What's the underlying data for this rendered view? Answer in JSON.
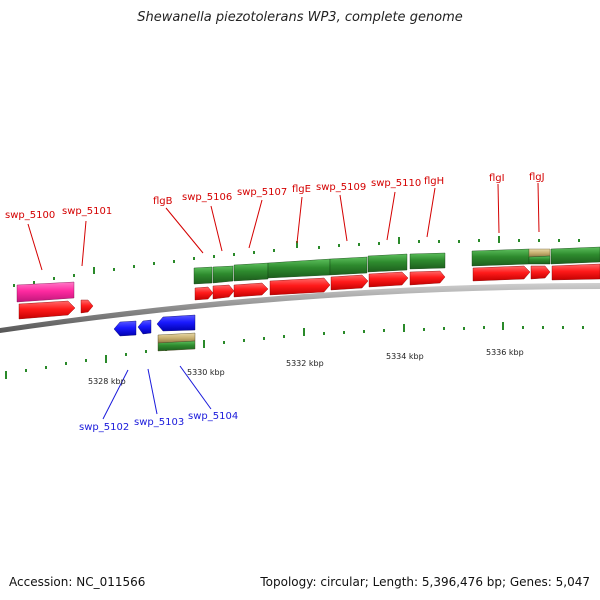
{
  "title": "Shewanella piezotolerans WP3, complete genome",
  "footer": {
    "accession": "Accession: NC_011566",
    "summary": "Topology: circular; Length: 5,396,476 bp; Genes: 5,047"
  },
  "colors": {
    "forward_cds": "#ff1a1a",
    "reverse_cds": "#1a1aff",
    "forward_gene": "#2e8b2e",
    "rna_gene": "#ff2aa0",
    "pseudo_gene": "#c8b070",
    "backbone": "#8c8c8c",
    "label_forward": "#d40000",
    "label_reverse": "#1a1adb"
  },
  "axis": {
    "ticks": [
      {
        "label": "5328 kbp",
        "kbp": 5328
      },
      {
        "label": "5330 kbp",
        "kbp": 5330
      },
      {
        "label": "5332 kbp",
        "kbp": 5332
      },
      {
        "label": "5334 kbp",
        "kbp": 5334
      },
      {
        "label": "5336 kbp",
        "kbp": 5336
      }
    ]
  },
  "genes": {
    "forward": [
      "swp_5100",
      "swp_5101",
      "flgB",
      "swp_5106",
      "swp_5107",
      "flgE",
      "swp_5109",
      "swp_5110",
      "flgH",
      "flgI",
      "flgJ"
    ],
    "reverse": [
      "swp_5102",
      "swp_5103",
      "swp_5104"
    ]
  }
}
